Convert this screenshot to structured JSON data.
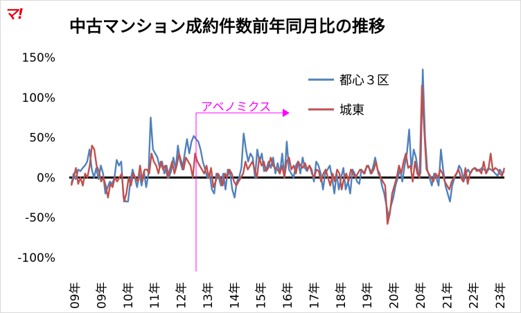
{
  "brand": {
    "logo_text": "マ!",
    "logo_color": "#e60012"
  },
  "chart_data": {
    "type": "line",
    "title": "中古マンション成約件数前年同月比の推移",
    "xlabel": "",
    "ylabel": "",
    "ylim": [
      -1.0,
      1.5
    ],
    "y_ticks": [
      {
        "value": 1.5,
        "label": "150%"
      },
      {
        "value": 1.0,
        "label": "100%"
      },
      {
        "value": 0.5,
        "label": "50%"
      },
      {
        "value": 0.0,
        "label": "0%"
      },
      {
        "value": -0.5,
        "label": "-50%"
      },
      {
        "value": -1.0,
        "label": "-100%"
      }
    ],
    "x_tick_labels": [
      "09年",
      "09年",
      "10年",
      "11年",
      "12年",
      "13年",
      "14年",
      "15年",
      "16年",
      "17年",
      "18年",
      "19年",
      "20年",
      "20年",
      "21年",
      "22年",
      "23年"
    ],
    "grid": "horizontal",
    "legend_position": "top-right",
    "colors": {
      "tokyo3": "#4f81bd",
      "joto": "#c0504d",
      "zero_line": "#000000",
      "annotation": "#ff00ff"
    },
    "series": [
      {
        "name": "都心３区",
        "values": [
          -0.08,
          0.05,
          -0.02,
          0.1,
          0.08,
          0.12,
          0.15,
          0.2,
          0.35,
          0.1,
          0.0,
          0.12,
          -0.02,
          0.15,
          0.05,
          -0.2,
          -0.12,
          -0.05,
          -0.08,
          0.0,
          0.22,
          0.15,
          0.2,
          -0.25,
          -0.3,
          -0.3,
          -0.05,
          0.1,
          0.0,
          -0.12,
          0.05,
          -0.1,
          0.08,
          -0.12,
          0.05,
          0.75,
          0.35,
          0.3,
          0.25,
          0.12,
          0.2,
          0.05,
          0.15,
          0.0,
          0.08,
          0.25,
          0.1,
          0.4,
          0.2,
          0.1,
          0.3,
          0.48,
          0.3,
          0.45,
          0.52,
          0.48,
          0.45,
          0.35,
          0.2,
          0.1,
          0.0,
          0.05,
          -0.15,
          -0.2,
          0.05,
          0.0,
          -0.1,
          0.05,
          -0.15,
          0.1,
          0.05,
          -0.15,
          -0.25,
          -0.05,
          0.0,
          0.12,
          0.55,
          0.35,
          0.2,
          0.3,
          0.25,
          0.0,
          0.35,
          0.2,
          0.3,
          0.08,
          0.1,
          0.2,
          0.12,
          0.25,
          0.05,
          0.18,
          0.05,
          0.3,
          0.0,
          0.45,
          0.1,
          0.05,
          0.0,
          0.15,
          0.2,
          0.05,
          0.25,
          0.12,
          0.08,
          0.15,
          0.1,
          -0.05,
          0.2,
          0.15,
          0.05,
          -0.15,
          0.05,
          0.1,
          0.15,
          0.0,
          -0.2,
          0.05,
          -0.15,
          0.0,
          0.12,
          -0.15,
          -0.05,
          -0.2,
          0.1,
          0.05,
          -0.05,
          -0.08,
          0.1,
          0.05,
          0.12,
          0.15,
          0.05,
          0.12,
          0.25,
          0.1,
          0.05,
          -0.1,
          -0.2,
          -0.35,
          -0.5,
          -0.35,
          -0.25,
          -0.1,
          0.0,
          0.1,
          -0.05,
          0.15,
          0.3,
          0.6,
          0.1,
          0.35,
          0.25,
          0.05,
          0.05,
          1.35,
          0.5,
          0.1,
          0.0,
          -0.1,
          0.05,
          0.0,
          -0.1,
          0.35,
          0.1,
          -0.1,
          -0.2,
          -0.3,
          -0.1,
          0.0,
          0.05,
          0.15,
          0.1,
          -0.05,
          0.05,
          0.1,
          0.05,
          0.1,
          0.12,
          0.1,
          0.08,
          0.12,
          0.1,
          0.08,
          0.12,
          0.1,
          0.08,
          0.05,
          0.02,
          0.1,
          0.05,
          0.08
        ],
        "color": "#4f81bd"
      },
      {
        "name": "城東",
        "values": [
          -0.1,
          0.0,
          0.12,
          -0.08,
          0.0,
          -0.1,
          0.05,
          0.0,
          0.15,
          0.4,
          0.35,
          0.15,
          0.08,
          -0.05,
          0.0,
          -0.1,
          -0.25,
          -0.08,
          -0.12,
          0.0,
          -0.05,
          0.0,
          0.05,
          -0.3,
          -0.2,
          0.0,
          -0.1,
          0.05,
          0.0,
          -0.05,
          0.15,
          -0.05,
          0.1,
          0.1,
          0.05,
          0.3,
          0.2,
          0.15,
          0.05,
          0.2,
          0.1,
          0.15,
          0.0,
          0.1,
          0.2,
          0.05,
          0.15,
          0.3,
          0.2,
          0.1,
          0.25,
          0.2,
          0.15,
          0.0,
          0.3,
          0.2,
          0.15,
          0.1,
          0.05,
          0.15,
          0.0,
          0.12,
          -0.12,
          -0.05,
          0.05,
          0.0,
          -0.1,
          0.05,
          0.0,
          0.1,
          0.05,
          -0.05,
          -0.1,
          -0.05,
          0.0,
          0.05,
          0.2,
          0.1,
          0.15,
          0.2,
          0.1,
          0.0,
          0.25,
          0.15,
          0.2,
          0.08,
          0.12,
          0.25,
          0.15,
          0.12,
          0.1,
          0.05,
          0.15,
          0.0,
          0.2,
          0.25,
          0.1,
          0.15,
          0.05,
          0.2,
          0.15,
          0.12,
          0.18,
          0.1,
          0.15,
          0.05,
          0.0,
          0.1,
          0.08,
          -0.05,
          0.05,
          0.1,
          0.0,
          -0.1,
          0.05,
          -0.05,
          0.1,
          0.05,
          -0.15,
          0.0,
          0.05,
          -0.05,
          0.1,
          0.05,
          0.0,
          0.05,
          0.1,
          0.08,
          0.05,
          0.15,
          0.12,
          0.05,
          0.1,
          0.2,
          0.05,
          0.0,
          -0.05,
          -0.1,
          -0.58,
          -0.45,
          -0.2,
          -0.1,
          0.0,
          0.15,
          0.05,
          0.2,
          0.3,
          0.12,
          0.15,
          -0.05,
          0.2,
          0.05,
          0.0,
          1.15,
          0.6,
          0.1,
          0.05,
          0.0,
          -0.05,
          0.05,
          0.0,
          0.1,
          0.05,
          -0.05,
          -0.1,
          -0.15,
          -0.05,
          0.0,
          0.05,
          0.1,
          0.0,
          -0.05,
          0.12,
          -0.08,
          0.05,
          0.1,
          0.12,
          0.08,
          0.1,
          0.05,
          0.2,
          0.05,
          0.1,
          0.3,
          0.08,
          0.12,
          0.1,
          0.05,
          0.02,
          0.12
        ],
        "color": "#c0504d"
      }
    ],
    "annotations": [
      {
        "text": "アベノミクス",
        "color": "#ff00ff"
      }
    ]
  }
}
